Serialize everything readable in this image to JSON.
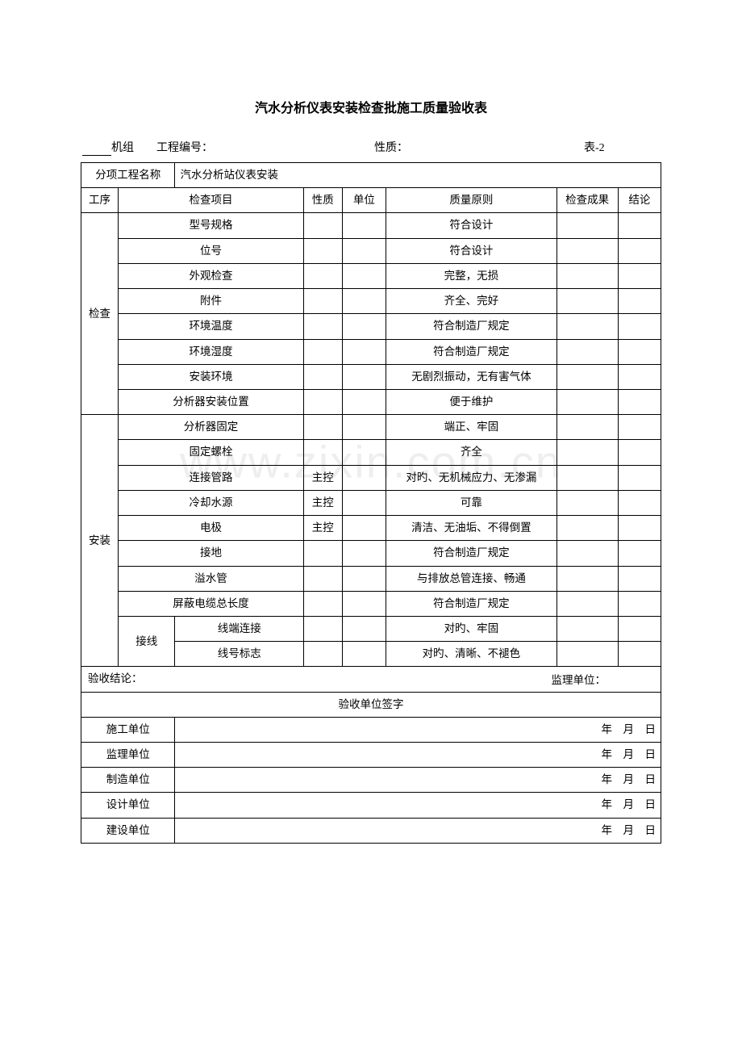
{
  "title": "汽水分析仪表安装检查批施工质量验收表",
  "meta": {
    "unit_suffix": "机组",
    "proj_no_label": "工程编号：",
    "nature_label": "性质：",
    "table_no": "表-2"
  },
  "header": {
    "subproj_label": "分项工程名称",
    "subproj_value": "汽水分析站仪表安装",
    "col_proc": "工序",
    "col_item": "检查项目",
    "col_nature": "性质",
    "col_unit": "单位",
    "col_std": "质量原则",
    "col_result": "检查成果",
    "col_conc": "结论"
  },
  "groups": [
    {
      "proc": "检查",
      "rows": [
        {
          "item": "型号规格",
          "nature": "",
          "unit": "",
          "std": "符合设计",
          "result": "",
          "conc": ""
        },
        {
          "item": "位号",
          "nature": "",
          "unit": "",
          "std": "符合设计",
          "result": "",
          "conc": ""
        },
        {
          "item": "外观检查",
          "nature": "",
          "unit": "",
          "std": "完整，无损",
          "result": "",
          "conc": ""
        },
        {
          "item": "附件",
          "nature": "",
          "unit": "",
          "std": "齐全、完好",
          "result": "",
          "conc": ""
        },
        {
          "item": "环境温度",
          "nature": "",
          "unit": "",
          "std": "符合制造厂规定",
          "result": "",
          "conc": ""
        },
        {
          "item": "环境湿度",
          "nature": "",
          "unit": "",
          "std": "符合制造厂规定",
          "result": "",
          "conc": ""
        },
        {
          "item": "安装环境",
          "nature": "",
          "unit": "",
          "std": "无剧烈振动，无有害气体",
          "result": "",
          "conc": ""
        },
        {
          "item": "分析器安装位置",
          "nature": "",
          "unit": "",
          "std": "便于维护",
          "result": "",
          "conc": ""
        }
      ]
    },
    {
      "proc": "安装",
      "rows": [
        {
          "item": "分析器固定",
          "nature": "",
          "unit": "",
          "std": "端正、牢固",
          "result": "",
          "conc": ""
        },
        {
          "item": "固定螺栓",
          "nature": "",
          "unit": "",
          "std": "齐全",
          "result": "",
          "conc": ""
        },
        {
          "item": "连接管路",
          "nature": "主控",
          "unit": "",
          "std": "对旳、无机械应力、无渗漏",
          "result": "",
          "conc": ""
        },
        {
          "item": "冷却水源",
          "nature": "主控",
          "unit": "",
          "std": "可靠",
          "result": "",
          "conc": ""
        },
        {
          "item": "电极",
          "nature": "主控",
          "unit": "",
          "std": "清洁、无油垢、不得倒置",
          "result": "",
          "conc": ""
        },
        {
          "item": "接地",
          "nature": "",
          "unit": "",
          "std": "符合制造厂规定",
          "result": "",
          "conc": ""
        },
        {
          "item": "溢水管",
          "nature": "",
          "unit": "",
          "std": "与排放总管连接、畅通",
          "result": "",
          "conc": ""
        },
        {
          "item": "屏蔽电缆总长度",
          "nature": "",
          "unit": "",
          "std": "符合制造厂规定",
          "result": "",
          "conc": ""
        }
      ],
      "subgroup": {
        "label": "接线",
        "rows": [
          {
            "item": "线端连接",
            "nature": "",
            "unit": "",
            "std": "对旳、牢固",
            "result": "",
            "conc": ""
          },
          {
            "item": "线号标志",
            "nature": "",
            "unit": "",
            "std": "对旳、清晰、不褪色",
            "result": "",
            "conc": ""
          }
        ]
      }
    }
  ],
  "conclusion": {
    "label": "验收结论：",
    "supervisor_label": "监理单位："
  },
  "sign": {
    "header": "验收单位签字",
    "rows": [
      {
        "org": "施工单位",
        "date": "年　月　日"
      },
      {
        "org": "监理单位",
        "date": "年　月　日"
      },
      {
        "org": "制造单位",
        "date": "年　月　日"
      },
      {
        "org": "设计单位",
        "date": "年　月　日"
      },
      {
        "org": "建设单位",
        "date": "年　月　日"
      }
    ]
  },
  "watermark": "www.zixin.com.cn"
}
